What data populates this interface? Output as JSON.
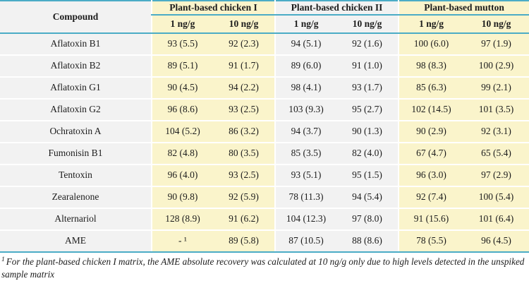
{
  "colors": {
    "accent": "#4BACC6",
    "band_yellow": "#FAF4CB",
    "band_grey": "#F2F2F2",
    "text": "#1c1c1c"
  },
  "table": {
    "compound_header": "Compound",
    "groups": [
      {
        "label": "Plant-based chicken I",
        "tone": "yellow"
      },
      {
        "label": "Plant-based chicken II",
        "tone": "grey"
      },
      {
        "label": "Plant-based mutton",
        "tone": "yellow"
      }
    ],
    "subheaders": [
      "1 ng/g",
      "10 ng/g"
    ],
    "rows": [
      {
        "compound": "Aflatoxin B1",
        "values": [
          "93 (5.5)",
          "92 (2.3)",
          "94 (5.1)",
          "92 (1.6)",
          "100 (6.0)",
          "97 (1.9)"
        ]
      },
      {
        "compound": "Aflatoxin B2",
        "values": [
          "89 (5.1)",
          "91 (1.7)",
          "89 (6.0)",
          "91 (1.0)",
          "98 (8.3)",
          "100 (2.9)"
        ]
      },
      {
        "compound": "Aflatoxin G1",
        "values": [
          "90 (4.5)",
          "94 (2.2)",
          "98 (4.1)",
          "93 (1.7)",
          "85 (6.3)",
          "99 (2.1)"
        ]
      },
      {
        "compound": "Aflatoxin G2",
        "values": [
          "96 (8.6)",
          "93 (2.5)",
          "103 (9.3)",
          "95 (2.7)",
          "102 (14.5)",
          "101 (3.5)"
        ]
      },
      {
        "compound": "Ochratoxin A",
        "values": [
          "104 (5.2)",
          "86 (3.2)",
          "94 (3.7)",
          "90 (1.3)",
          "90 (2.9)",
          "92 (3.1)"
        ]
      },
      {
        "compound": "Fumonisin B1",
        "values": [
          "82 (4.8)",
          "80 (3.5)",
          "85 (3.5)",
          "82 (4.0)",
          "67 (4.7)",
          "65 (5.4)"
        ]
      },
      {
        "compound": "Tentoxin",
        "values": [
          "96 (4.0)",
          "93 (2.5)",
          "93 (5.1)",
          "95 (1.5)",
          "96 (3.0)",
          "97 (2.9)"
        ]
      },
      {
        "compound": "Zearalenone",
        "values": [
          "90 (9.8)",
          "92 (5.9)",
          "78 (11.3)",
          "94 (5.4)",
          "92 (7.4)",
          "100 (5.4)"
        ]
      },
      {
        "compound": "Alternariol",
        "values": [
          "128 (8.9)",
          "91 (6.2)",
          "104 (12.3)",
          "97 (8.0)",
          "91 (15.6)",
          "101 (6.4)"
        ]
      },
      {
        "compound": "AME",
        "values": [
          "- ¹",
          "89 (5.8)",
          "87 (10.5)",
          "88 (8.6)",
          "78 (5.5)",
          "96 (4.5)"
        ]
      }
    ],
    "column_tones": [
      "yellow",
      "yellow",
      "grey",
      "grey",
      "yellow",
      "yellow"
    ],
    "footnote_marker": "1",
    "footnote_text": "For the plant-based chicken I matrix, the AME absolute recovery was calculated at 10 ng/g only due to high levels detected in the unspiked sample matrix"
  }
}
